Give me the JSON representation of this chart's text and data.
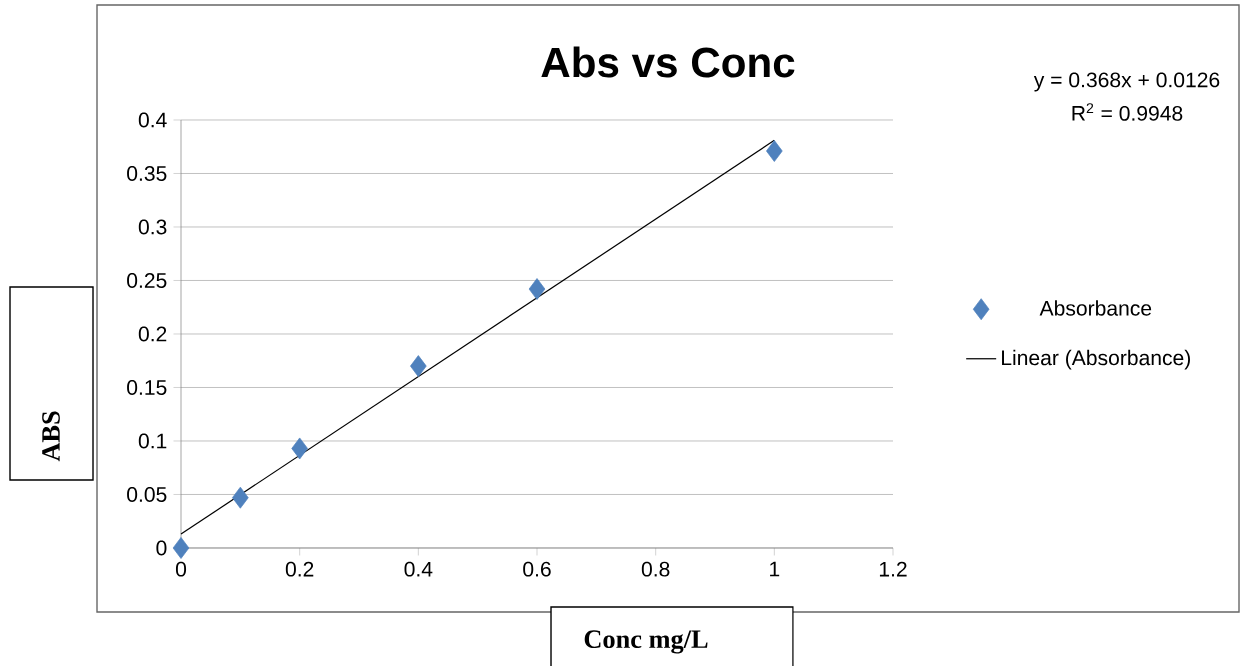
{
  "chart_data": {
    "type": "scatter",
    "title": "Abs vs Conc",
    "xlabel": "Conc mg/L",
    "ylabel": "ABS",
    "x": [
      0,
      0.1,
      0.2,
      0.4,
      0.6,
      1
    ],
    "series": [
      {
        "name": "Absorbance",
        "color": "#4f81bd",
        "marker": "diamond",
        "values": [
          0,
          0.047,
          0.093,
          0.17,
          0.242,
          0.371
        ]
      },
      {
        "name": "Linear (Absorbance)",
        "type": "line",
        "color": "#000000",
        "x": [
          0,
          1
        ],
        "values": [
          0.013,
          0.381
        ]
      }
    ],
    "annotations": [
      "y = 0.368x + 0.0126",
      "R$^{2}$ = 0.9948"
    ],
    "xlim": [
      0,
      1.2
    ],
    "ylim": [
      0,
      0.4
    ],
    "xticks": [
      0,
      0.2,
      0.4,
      0.6,
      0.8,
      1,
      1.2
    ],
    "yticks": [
      0,
      0.05,
      0.1,
      0.15,
      0.2,
      0.25,
      0.3,
      0.35,
      0.4
    ],
    "grid": "y",
    "legend": "right"
  }
}
